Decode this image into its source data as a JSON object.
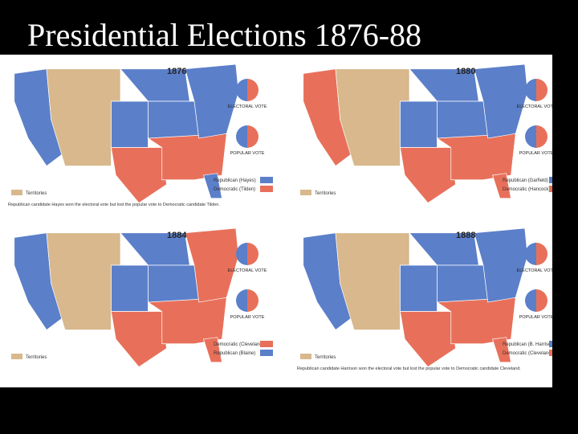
{
  "title": "Presidential Elections 1876-88",
  "maps": [
    {
      "year": "1876",
      "electoral_label": "ELECTORAL VOTE",
      "popular_label": "POPULAR VOTE",
      "territories": "Territories",
      "legend": [
        "Republican (Hayes)",
        "Democratic (Tilden)"
      ],
      "note": "Republican candidate Hayes won the electoral vote but lost the popular vote to Democratic candidate Tilden."
    },
    {
      "year": "1880",
      "electoral_label": "ELECTORAL VOTE",
      "popular_label": "POPULAR VOTE",
      "territories": "Territories",
      "legend": [
        "Republican (Garfield)",
        "Democratic (Hancock)"
      ]
    },
    {
      "year": "1884",
      "electoral_label": "ELECTORAL VOTE",
      "popular_label": "POPULAR VOTE",
      "territories": "Territories",
      "legend": [
        "Democratic (Cleveland)",
        "Republican (Blaine)"
      ]
    },
    {
      "year": "1888",
      "electoral_label": "ELECTORAL VOTE",
      "popular_label": "POPULAR VOTE",
      "territories": "Territories",
      "legend": [
        "Republican (B. Harrison)",
        "Democratic (Cleveland)"
      ],
      "note": "Republican candidate Harrison won the electoral vote but lost the popular vote to Democratic candidate Cleveland."
    }
  ]
}
